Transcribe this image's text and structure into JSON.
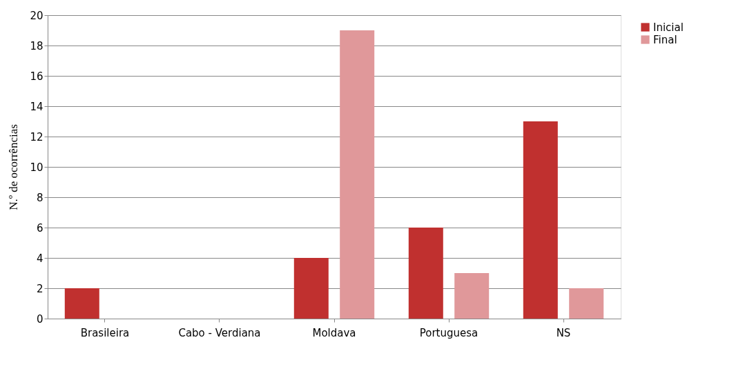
{
  "chart_data": {
    "type": "bar",
    "ylabel": "N.º de ocorrências",
    "categories": [
      "Brasileira",
      "Cabo - Verdiana",
      "Moldava",
      "Portuguesa",
      "NS"
    ],
    "series": [
      {
        "name": "Inicial",
        "color": "#c0302f",
        "values": [
          2,
          0,
          4,
          6,
          13
        ]
      },
      {
        "name": "Final",
        "color": "#e0989a",
        "values": [
          0,
          0,
          19,
          3,
          2
        ]
      }
    ],
    "ylim": [
      0,
      20
    ],
    "yticks": [
      0,
      2,
      4,
      6,
      8,
      10,
      12,
      14,
      16,
      18,
      20
    ],
    "grid": "y",
    "legend": "right"
  }
}
